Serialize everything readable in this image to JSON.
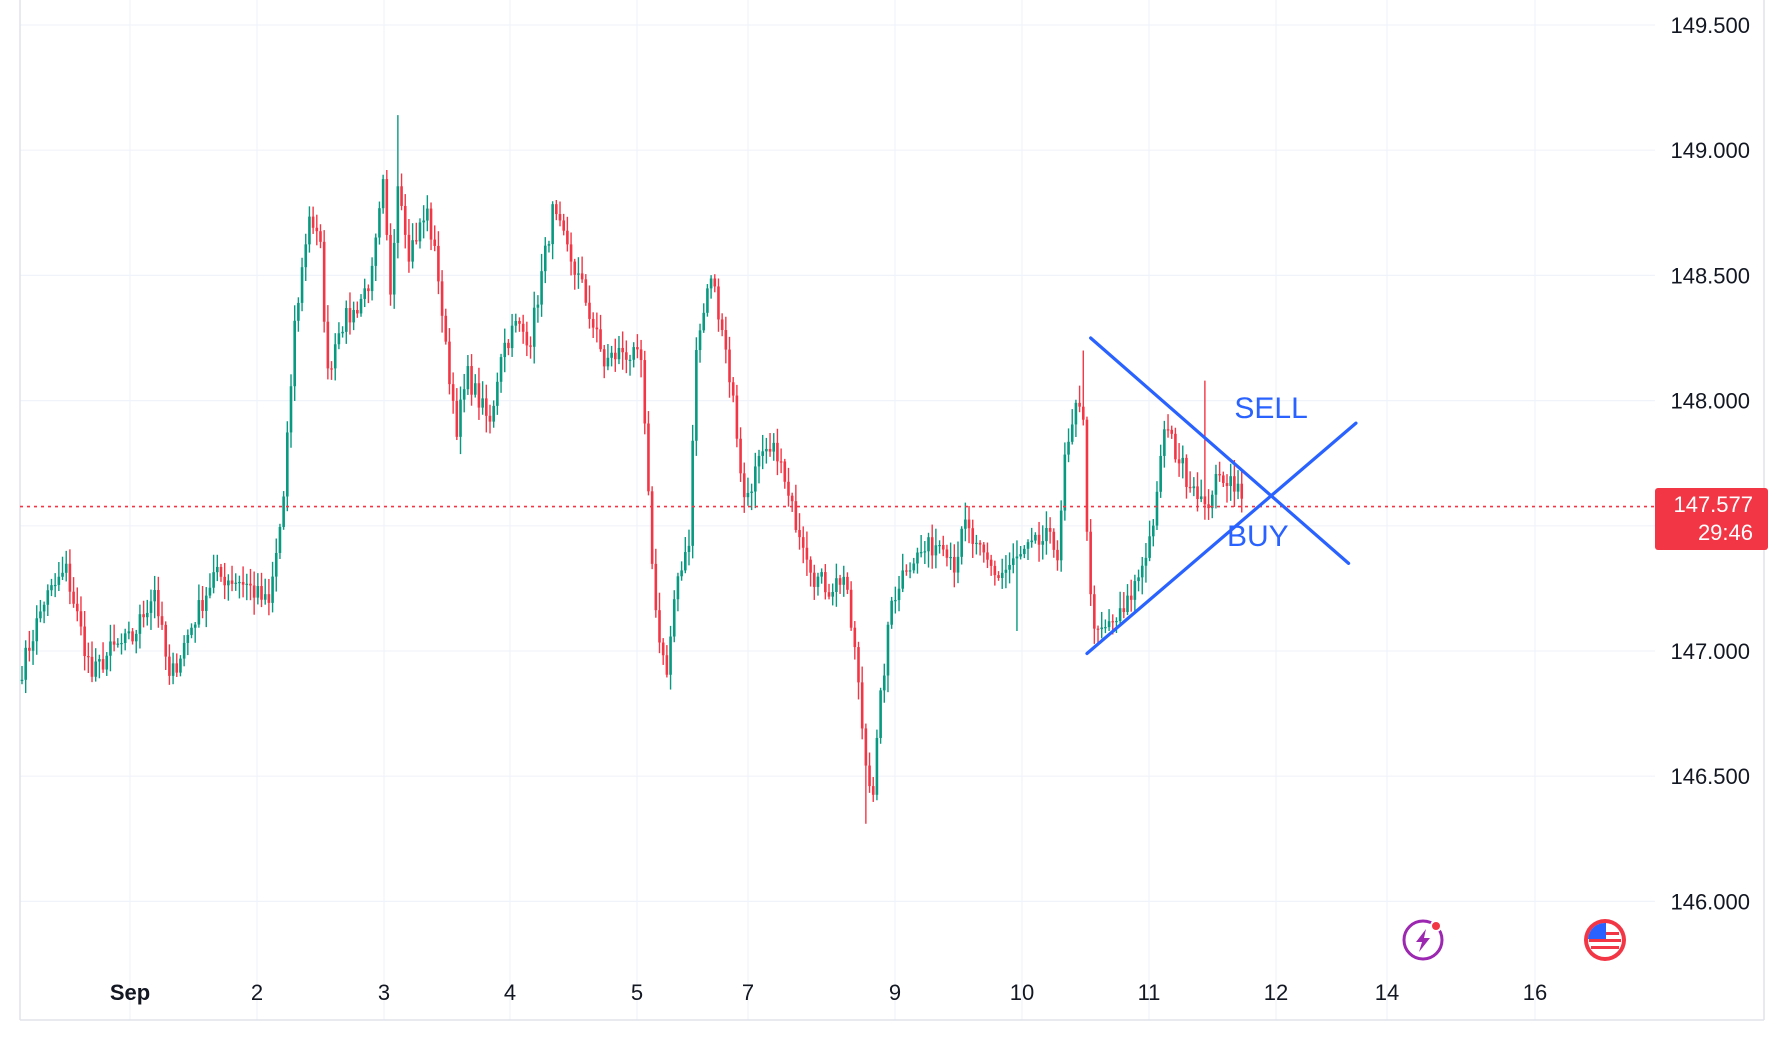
{
  "chart_data": {
    "type": "candlestick",
    "colors": {
      "up": "#089981",
      "down": "#f23645",
      "trendline": "#2962ff",
      "grid": "#f0f3fa",
      "price_line": "#f23645"
    },
    "ylim": [
      145.75,
      149.55
    ],
    "y_ticks": [
      149.5,
      149.0,
      148.5,
      148.0,
      147.5,
      147.0,
      146.5,
      146.0
    ],
    "y_tick_labels": [
      "149.500",
      "149.000",
      "148.500",
      "148.000",
      "147.000",
      "146.500",
      "146.000"
    ],
    "x_ticks": [
      {
        "label": "Sep",
        "bold": true
      },
      {
        "label": "2"
      },
      {
        "label": "3"
      },
      {
        "label": "4"
      },
      {
        "label": "5"
      },
      {
        "label": "7"
      },
      {
        "label": "9"
      },
      {
        "label": "10"
      },
      {
        "label": "11"
      },
      {
        "label": "12"
      },
      {
        "label": "14"
      },
      {
        "label": "16"
      }
    ],
    "session_path": [
      [
        0,
        146.93
      ],
      [
        6,
        147.2
      ],
      [
        12,
        147.32
      ],
      [
        19,
        146.9
      ],
      [
        24,
        147.0
      ],
      [
        30,
        147.05
      ],
      [
        36,
        147.25
      ],
      [
        40,
        146.88
      ],
      [
        46,
        147.1
      ],
      [
        52,
        147.3
      ],
      [
        60,
        147.28
      ],
      [
        67,
        147.18
      ],
      [
        71,
        147.6
      ],
      [
        74,
        148.3
      ],
      [
        78,
        148.75
      ],
      [
        81,
        148.6
      ],
      [
        83,
        148.1
      ],
      [
        86,
        148.3
      ],
      [
        90,
        148.35
      ],
      [
        95,
        148.5
      ],
      [
        98,
        148.85
      ],
      [
        100,
        148.4
      ],
      [
        102,
        148.9
      ],
      [
        105,
        148.6
      ],
      [
        110,
        148.75
      ],
      [
        113,
        148.5
      ],
      [
        115,
        148.2
      ],
      [
        118,
        147.9
      ],
      [
        121,
        148.1
      ],
      [
        124,
        148.0
      ],
      [
        127,
        147.9
      ],
      [
        130,
        148.2
      ],
      [
        134,
        148.3
      ],
      [
        138,
        148.25
      ],
      [
        141,
        148.5
      ],
      [
        144,
        148.75
      ],
      [
        148,
        148.6
      ],
      [
        152,
        148.45
      ],
      [
        155,
        148.3
      ],
      [
        158,
        148.15
      ],
      [
        163,
        148.2
      ],
      [
        168,
        148.15
      ],
      [
        170,
        147.6
      ],
      [
        172,
        147.15
      ],
      [
        175,
        146.9
      ],
      [
        178,
        147.3
      ],
      [
        181,
        147.45
      ],
      [
        183,
        148.2
      ],
      [
        187,
        148.5
      ],
      [
        190,
        148.3
      ],
      [
        193,
        148.0
      ],
      [
        196,
        147.6
      ],
      [
        200,
        147.75
      ],
      [
        205,
        147.8
      ],
      [
        208,
        147.6
      ],
      [
        212,
        147.45
      ],
      [
        215,
        147.3
      ],
      [
        219,
        147.25
      ],
      [
        223,
        147.3
      ],
      [
        226,
        147.0
      ],
      [
        229,
        146.55
      ],
      [
        231,
        146.45
      ],
      [
        233,
        146.8
      ],
      [
        236,
        147.2
      ],
      [
        240,
        147.35
      ],
      [
        245,
        147.4
      ],
      [
        250,
        147.45
      ],
      [
        253,
        147.35
      ],
      [
        256,
        147.5
      ],
      [
        259,
        147.4
      ],
      [
        262,
        147.35
      ],
      [
        265,
        147.3
      ],
      [
        269,
        147.35
      ],
      [
        273,
        147.4
      ],
      [
        278,
        147.45
      ],
      [
        281,
        147.4
      ],
      [
        283,
        147.75
      ],
      [
        286,
        147.95
      ],
      [
        288,
        147.95
      ],
      [
        289,
        147.5
      ],
      [
        290,
        147.2
      ],
      [
        292,
        147.05
      ],
      [
        295,
        147.1
      ],
      [
        299,
        147.15
      ],
      [
        303,
        147.3
      ],
      [
        306,
        147.45
      ],
      [
        308,
        147.6
      ],
      [
        310,
        147.9
      ],
      [
        313,
        147.8
      ],
      [
        316,
        147.7
      ],
      [
        319,
        147.65
      ],
      [
        321,
        147.55
      ],
      [
        323,
        147.65
      ],
      [
        326,
        147.7
      ],
      [
        329,
        147.68
      ],
      [
        331,
        147.6
      ]
    ],
    "notable_extremes": [
      {
        "index": 102,
        "high": 149.14
      },
      {
        "index": 229,
        "low": 146.31
      },
      {
        "index": 288,
        "high": 148.2
      },
      {
        "index": 270,
        "low": 147.08
      },
      {
        "index": 321,
        "high": 148.08
      }
    ],
    "last_price": "147.577",
    "countdown": "29:46",
    "trendlines": [
      {
        "name": "descending-resistance",
        "start": {
          "index": 290,
          "price": 148.25
        },
        "end": {
          "index": 360,
          "price": 147.35
        }
      },
      {
        "name": "ascending-support",
        "start": {
          "index": 289,
          "price": 146.99
        },
        "end": {
          "index": 362,
          "price": 147.91
        }
      }
    ],
    "annotations": [
      {
        "text": "SELL",
        "index": 329,
        "price": 147.93
      },
      {
        "text": "BUY",
        "index": 327,
        "price": 147.42
      }
    ]
  },
  "icons": {
    "lightning": "lightning-bolt-icon",
    "flag": "us-flag-icon"
  }
}
